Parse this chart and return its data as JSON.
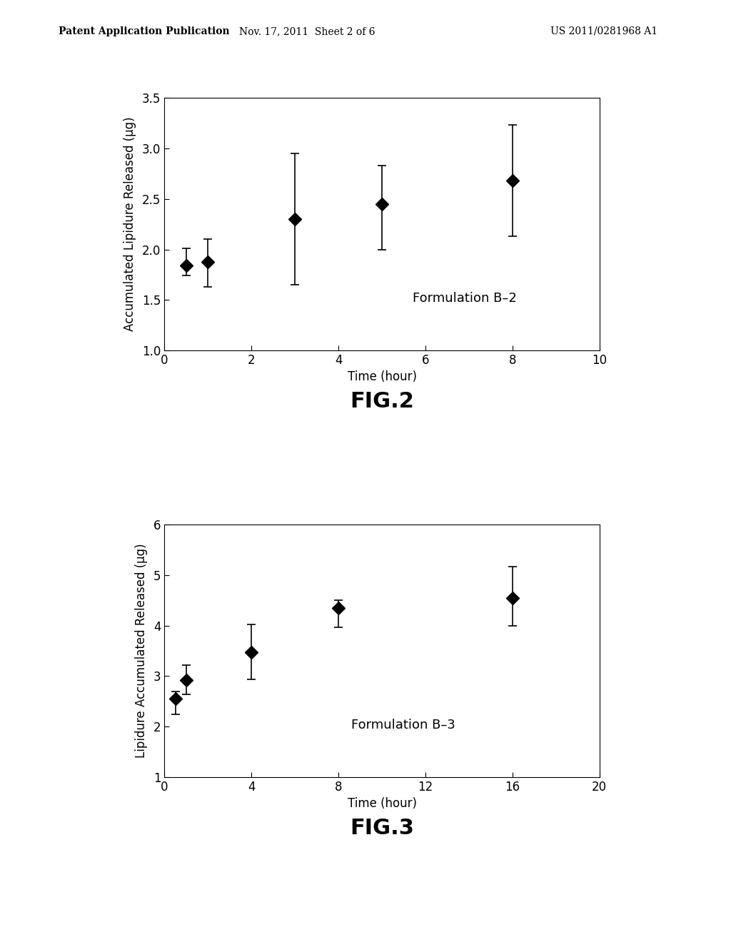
{
  "fig2": {
    "x": [
      0.5,
      1.0,
      3.0,
      5.0,
      8.0
    ],
    "y": [
      1.84,
      1.88,
      2.3,
      2.45,
      2.68
    ],
    "yerr_upper": [
      0.17,
      0.22,
      0.65,
      0.38,
      0.55
    ],
    "yerr_lower": [
      0.1,
      0.25,
      0.65,
      0.45,
      0.55
    ],
    "xlabel": "Time (hour)",
    "ylabel": "Accumulated Lipidure Released (μg)",
    "label": "Formulation B–2",
    "xlim": [
      0,
      10
    ],
    "ylim": [
      1.0,
      3.5
    ],
    "xticks": [
      0,
      2,
      4,
      6,
      8,
      10
    ],
    "yticks": [
      1.0,
      1.5,
      2.0,
      2.5,
      3.0,
      3.5
    ],
    "fig_label": "FIG.2"
  },
  "fig3": {
    "x": [
      0.5,
      1.0,
      4.0,
      8.0,
      16.0
    ],
    "y": [
      2.55,
      2.92,
      3.48,
      4.35,
      4.55
    ],
    "yerr_upper": [
      0.15,
      0.3,
      0.55,
      0.15,
      0.62
    ],
    "yerr_lower": [
      0.3,
      0.28,
      0.55,
      0.38,
      0.55
    ],
    "xlabel": "Time (hour)",
    "ylabel": "Lipidure Accumulated Released (μg)",
    "label": "Formulation B–3",
    "xlim": [
      0,
      20
    ],
    "ylim": [
      1.0,
      6.0
    ],
    "xticks": [
      0,
      4,
      8,
      12,
      16,
      20
    ],
    "yticks": [
      1.0,
      2.0,
      3.0,
      4.0,
      5.0,
      6.0
    ],
    "fig_label": "FIG.3"
  },
  "background_color": "#ffffff",
  "marker_color": "#000000",
  "marker": "D",
  "marker_size": 9,
  "elinewidth": 1.2,
  "capsize": 4,
  "capthick": 1.2,
  "label_fontsize": 12,
  "tick_fontsize": 12,
  "annotation_fontsize": 13,
  "fig_label_fontsize": 22,
  "header_left": "Patent Application Publication",
  "header_mid": "Nov. 17, 2011  Sheet 2 of 6",
  "header_right": "US 2011/0281968 A1"
}
